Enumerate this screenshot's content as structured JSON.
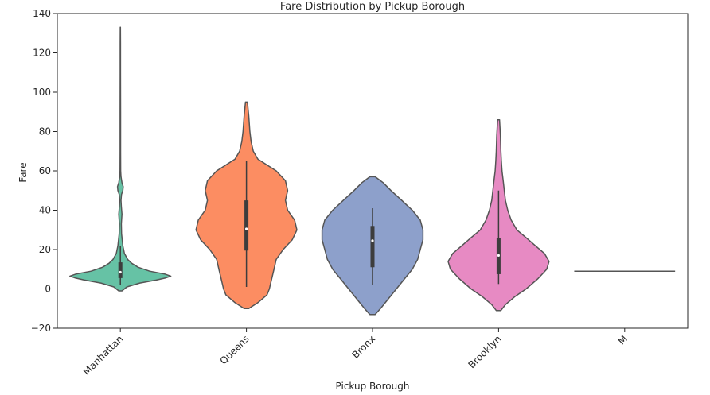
{
  "chart_data": {
    "type": "violin",
    "title": "Fare Distribution by Pickup Borough",
    "xlabel": "Pickup Borough",
    "ylabel": "Fare",
    "ylim": [
      -20,
      140
    ],
    "yticks": [
      -20,
      0,
      20,
      40,
      60,
      80,
      100,
      120,
      140
    ],
    "grid": false,
    "categories": [
      "Manhattan",
      "Queens",
      "Bronx",
      "Brooklyn",
      "M"
    ],
    "colors": [
      "#66c2a5",
      "#fc8d62",
      "#8da0cb",
      "#e78ac3",
      "#a6d854"
    ],
    "series": [
      {
        "category": "Manhattan",
        "median": 8.5,
        "q1": 5.5,
        "q3": 13.5,
        "whisker_low": 2,
        "whisker_high": 22,
        "profile": [
          [
            -1,
            0.02
          ],
          [
            1,
            0.08
          ],
          [
            3,
            0.24
          ],
          [
            4.5,
            0.44
          ],
          [
            5.5,
            0.55
          ],
          [
            6.5,
            0.62
          ],
          [
            7.5,
            0.55
          ],
          [
            9,
            0.36
          ],
          [
            11,
            0.22
          ],
          [
            13,
            0.14
          ],
          [
            15,
            0.09
          ],
          [
            18,
            0.05
          ],
          [
            22,
            0.03
          ],
          [
            28,
            0.015
          ],
          [
            33,
            0.012
          ],
          [
            38,
            0.02
          ],
          [
            42,
            0.012
          ],
          [
            45,
            0.008
          ],
          [
            48,
            0.014
          ],
          [
            50,
            0.03
          ],
          [
            52,
            0.035
          ],
          [
            54,
            0.02
          ],
          [
            57,
            0.008
          ],
          [
            60,
            0.004
          ],
          [
            70,
            0.003
          ],
          [
            90,
            0.003
          ],
          [
            110,
            0.002
          ],
          [
            125,
            0.002
          ],
          [
            133,
            0.001
          ]
        ]
      },
      {
        "category": "Queens",
        "median": 30.5,
        "q1": 19.5,
        "q3": 45,
        "whisker_low": 1,
        "whisker_high": 65,
        "profile": [
          [
            -10,
            0.01
          ],
          [
            -7,
            0.05
          ],
          [
            -3,
            0.09
          ],
          [
            0,
            0.1
          ],
          [
            5,
            0.11
          ],
          [
            10,
            0.12
          ],
          [
            15,
            0.13
          ],
          [
            20,
            0.16
          ],
          [
            25,
            0.2
          ],
          [
            30,
            0.22
          ],
          [
            35,
            0.21
          ],
          [
            40,
            0.18
          ],
          [
            45,
            0.17
          ],
          [
            50,
            0.18
          ],
          [
            55,
            0.17
          ],
          [
            60,
            0.13
          ],
          [
            63,
            0.09
          ],
          [
            66,
            0.05
          ],
          [
            70,
            0.03
          ],
          [
            75,
            0.02
          ],
          [
            80,
            0.015
          ],
          [
            88,
            0.01
          ],
          [
            95,
            0.004
          ]
        ]
      },
      {
        "category": "Bronx",
        "median": 24.5,
        "q1": 11,
        "q3": 32,
        "whisker_low": 2,
        "whisker_high": 41,
        "profile": [
          [
            -13,
            0.01
          ],
          [
            -10,
            0.03
          ],
          [
            -5,
            0.06
          ],
          [
            0,
            0.09
          ],
          [
            5,
            0.12
          ],
          [
            10,
            0.15
          ],
          [
            15,
            0.17
          ],
          [
            20,
            0.18
          ],
          [
            25,
            0.19
          ],
          [
            30,
            0.19
          ],
          [
            35,
            0.18
          ],
          [
            40,
            0.15
          ],
          [
            45,
            0.11
          ],
          [
            50,
            0.07
          ],
          [
            54,
            0.04
          ],
          [
            57,
            0.01
          ]
        ]
      },
      {
        "category": "Brooklyn",
        "median": 17,
        "q1": 7.5,
        "q3": 26,
        "whisker_low": 2.5,
        "whisker_high": 50,
        "profile": [
          [
            -11,
            0.01
          ],
          [
            -8,
            0.03
          ],
          [
            -4,
            0.07
          ],
          [
            0,
            0.12
          ],
          [
            5,
            0.17
          ],
          [
            10,
            0.21
          ],
          [
            14,
            0.22
          ],
          [
            18,
            0.2
          ],
          [
            22,
            0.16
          ],
          [
            26,
            0.12
          ],
          [
            30,
            0.08
          ],
          [
            35,
            0.055
          ],
          [
            40,
            0.04
          ],
          [
            45,
            0.03
          ],
          [
            50,
            0.025
          ],
          [
            55,
            0.02
          ],
          [
            60,
            0.015
          ],
          [
            65,
            0.012
          ],
          [
            70,
            0.01
          ],
          [
            78,
            0.008
          ],
          [
            86,
            0.004
          ]
        ]
      },
      {
        "category": "M",
        "value": 9
      }
    ]
  }
}
